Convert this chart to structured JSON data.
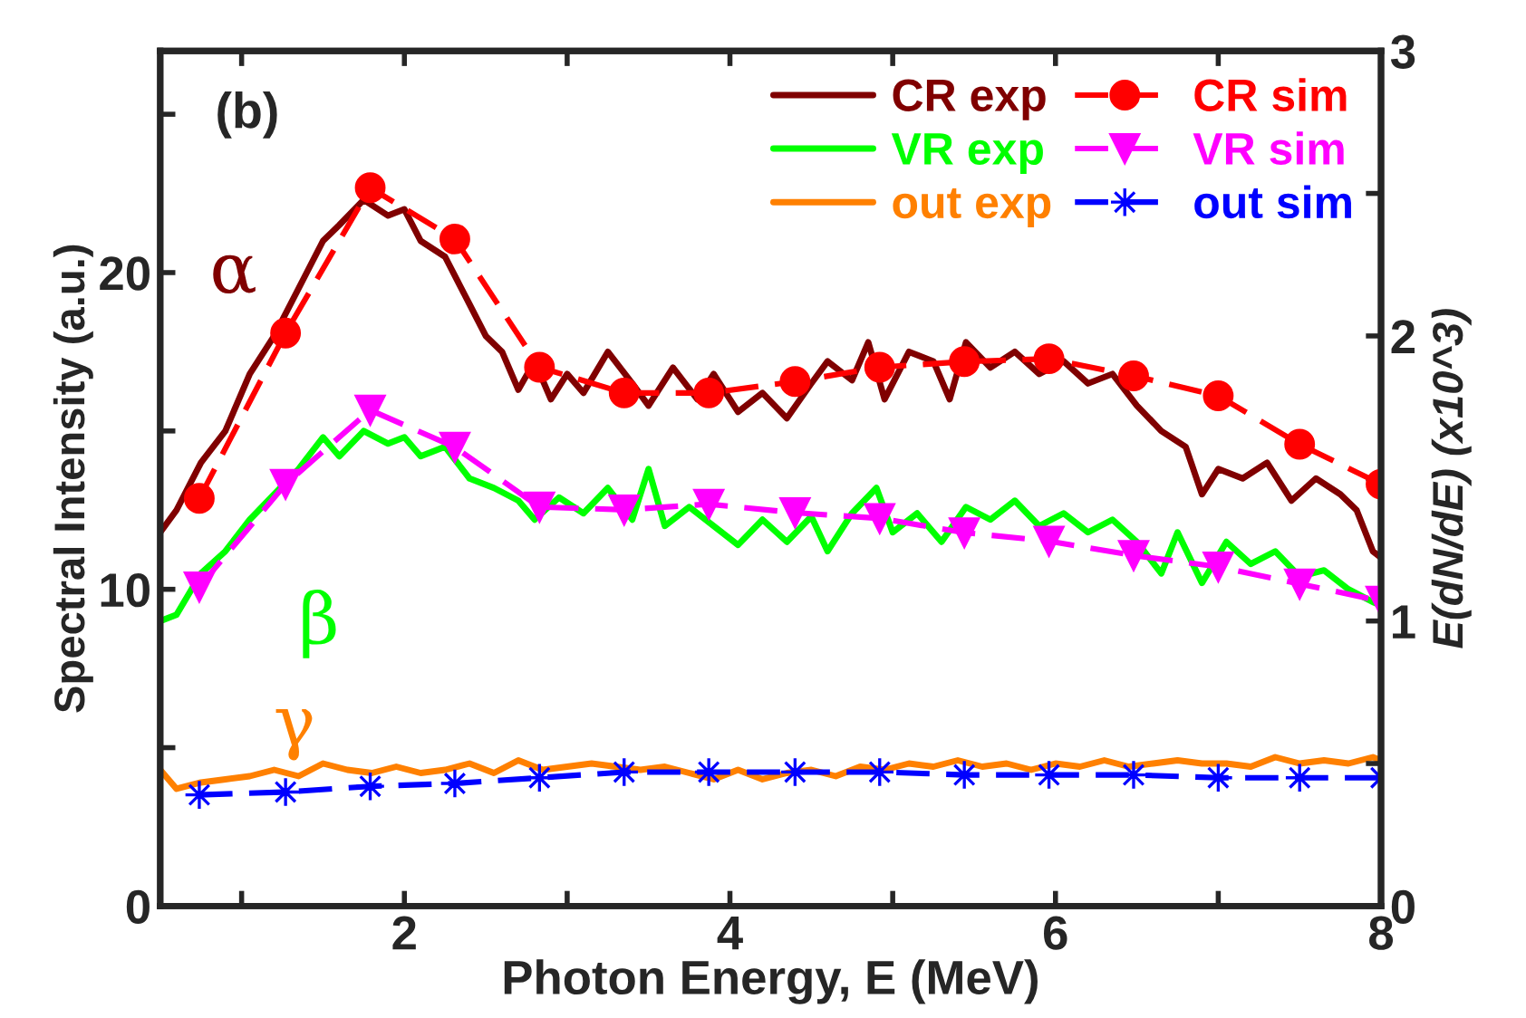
{
  "chart_data": {
    "type": "line",
    "xlabel": "Photon Energy, E (MeV)",
    "ylabel": "Spectral Intensity (a.u.)",
    "y2label": "E(dN/dE) (x10^3)",
    "annotations": [
      "(b)",
      "α",
      "β",
      "γ"
    ],
    "xlim": [
      0.5,
      8
    ],
    "xticks": [
      {
        "value": 1,
        "label": null
      },
      2,
      {
        "value": 3,
        "label": null
      },
      4,
      {
        "value": 5,
        "label": null
      },
      6,
      {
        "value": 7,
        "label": null
      },
      8
    ],
    "ylim": [
      0,
      27
    ],
    "yticks": [
      0,
      {
        "value": 5,
        "label": null
      },
      10,
      {
        "value": 15,
        "label": null
      },
      20,
      {
        "value": 25,
        "label": null
      }
    ],
    "y2lim": [
      0,
      3
    ],
    "y2ticks": [
      0,
      {
        "value": 0.5,
        "label": null
      },
      1,
      {
        "value": 1.5,
        "label": null
      },
      2,
      {
        "value": 2.5,
        "label": null
      },
      3
    ],
    "grid": false,
    "legend": "top right",
    "series": [
      {
        "name": "CR exp",
        "color": "#800000",
        "marker": "none",
        "line_style": "solid",
        "x": [
          0.5,
          0.6,
          0.75,
          0.9,
          1.05,
          1.2,
          1.35,
          1.5,
          1.6,
          1.75,
          1.9,
          2.0,
          2.1,
          2.25,
          2.4,
          2.5,
          2.6,
          2.7,
          2.8,
          2.9,
          3.0,
          3.1,
          3.25,
          3.4,
          3.5,
          3.65,
          3.8,
          3.9,
          4.05,
          4.2,
          4.35,
          4.5,
          4.6,
          4.75,
          4.85,
          4.95,
          5.1,
          5.25,
          5.35,
          5.45,
          5.6,
          5.75,
          5.9,
          6.05,
          6.2,
          6.35,
          6.5,
          6.65,
          6.8,
          6.9,
          7.0,
          7.15,
          7.3,
          7.45,
          7.6,
          7.75,
          7.85,
          7.95,
          8.0
        ],
        "values": [
          11.8,
          12.5,
          14.0,
          15.0,
          16.8,
          18.0,
          19.5,
          21.0,
          21.5,
          22.3,
          21.8,
          22.0,
          21.0,
          20.5,
          19.0,
          18.0,
          17.5,
          16.3,
          17.2,
          16.0,
          16.8,
          16.2,
          17.5,
          16.5,
          15.8,
          17.0,
          16.0,
          16.8,
          15.6,
          16.2,
          15.4,
          16.5,
          17.2,
          16.6,
          17.8,
          16.0,
          17.5,
          17.2,
          16.0,
          17.8,
          17.0,
          17.5,
          16.8,
          17.2,
          16.5,
          16.8,
          15.8,
          15.0,
          14.5,
          13.0,
          13.8,
          13.5,
          14.0,
          12.8,
          13.5,
          13.0,
          12.5,
          11.2,
          11.0
        ]
      },
      {
        "name": "VR exp",
        "color": "#00ff00",
        "marker": "none",
        "line_style": "solid",
        "x": [
          0.5,
          0.6,
          0.75,
          0.9,
          1.05,
          1.2,
          1.35,
          1.5,
          1.6,
          1.75,
          1.9,
          2.0,
          2.1,
          2.25,
          2.4,
          2.55,
          2.7,
          2.8,
          2.95,
          3.1,
          3.25,
          3.4,
          3.5,
          3.6,
          3.75,
          3.9,
          4.05,
          4.2,
          4.35,
          4.5,
          4.6,
          4.75,
          4.9,
          5.0,
          5.15,
          5.3,
          5.45,
          5.6,
          5.75,
          5.9,
          6.05,
          6.2,
          6.35,
          6.5,
          6.65,
          6.75,
          6.9,
          7.05,
          7.2,
          7.35,
          7.5,
          7.65,
          7.8,
          7.95,
          8.0
        ],
        "values": [
          9.0,
          9.2,
          10.5,
          11.2,
          12.2,
          13.0,
          13.8,
          14.8,
          14.2,
          15.0,
          14.6,
          14.8,
          14.2,
          14.5,
          13.5,
          13.2,
          12.8,
          12.2,
          12.9,
          12.4,
          13.2,
          12.2,
          13.8,
          12.0,
          12.6,
          12.0,
          11.4,
          12.2,
          11.5,
          12.3,
          11.2,
          12.4,
          13.2,
          11.8,
          12.4,
          11.5,
          12.6,
          12.2,
          12.8,
          12.0,
          12.4,
          11.8,
          12.2,
          11.5,
          10.5,
          11.8,
          10.2,
          11.5,
          10.8,
          11.2,
          10.4,
          10.6,
          10.0,
          9.6,
          9.5
        ]
      },
      {
        "name": "out exp",
        "color": "#ff8000",
        "marker": "none",
        "line_style": "solid",
        "x": [
          0.5,
          0.6,
          0.75,
          0.9,
          1.05,
          1.2,
          1.35,
          1.5,
          1.65,
          1.8,
          1.95,
          2.1,
          2.25,
          2.4,
          2.55,
          2.7,
          2.85,
          3.0,
          3.15,
          3.3,
          3.45,
          3.6,
          3.75,
          3.9,
          4.05,
          4.2,
          4.35,
          4.5,
          4.65,
          4.8,
          4.95,
          5.1,
          5.25,
          5.4,
          5.55,
          5.7,
          5.85,
          6.0,
          6.15,
          6.3,
          6.45,
          6.6,
          6.75,
          6.9,
          7.05,
          7.2,
          7.35,
          7.5,
          7.65,
          7.8,
          7.95,
          8.0
        ],
        "values": [
          4.3,
          3.7,
          3.9,
          4.0,
          4.1,
          4.3,
          4.1,
          4.5,
          4.3,
          4.2,
          4.4,
          4.2,
          4.3,
          4.5,
          4.2,
          4.6,
          4.3,
          4.4,
          4.5,
          4.4,
          4.3,
          4.4,
          4.2,
          4.0,
          4.3,
          4.0,
          4.2,
          4.3,
          4.1,
          4.4,
          4.3,
          4.5,
          4.4,
          4.6,
          4.4,
          4.5,
          4.3,
          4.5,
          4.4,
          4.6,
          4.4,
          4.5,
          4.6,
          4.5,
          4.5,
          4.4,
          4.7,
          4.5,
          4.6,
          4.5,
          4.7,
          4.6
        ]
      },
      {
        "name": "CR sim",
        "color": "#ff0000",
        "axis": "y2",
        "marker": "circle",
        "line_style": "dashed",
        "x": [
          0.74,
          1.27,
          1.79,
          2.31,
          2.83,
          3.35,
          3.87,
          4.4,
          4.92,
          5.44,
          5.96,
          6.48,
          7.0,
          7.5,
          8.0
        ],
        "values": [
          1.43,
          2.01,
          2.52,
          2.34,
          1.89,
          1.8,
          1.8,
          1.84,
          1.89,
          1.91,
          1.92,
          1.86,
          1.79,
          1.62,
          1.48
        ]
      },
      {
        "name": "VR sim",
        "color": "#ff00ff",
        "axis": "y2",
        "marker": "triangle",
        "line_style": "dashed",
        "x": [
          0.74,
          1.27,
          1.79,
          2.31,
          2.83,
          3.35,
          3.87,
          4.4,
          4.92,
          5.44,
          5.96,
          6.48,
          7.0,
          7.5,
          8.0
        ],
        "values": [
          1.12,
          1.48,
          1.74,
          1.61,
          1.4,
          1.39,
          1.41,
          1.38,
          1.36,
          1.31,
          1.28,
          1.23,
          1.19,
          1.13,
          1.07
        ]
      },
      {
        "name": "out sim",
        "color": "#0000ff",
        "axis": "y2",
        "marker": "star",
        "line_style": "dashed",
        "x": [
          0.74,
          1.27,
          1.79,
          2.31,
          2.83,
          3.35,
          3.87,
          4.4,
          4.92,
          5.44,
          5.96,
          6.48,
          7.0,
          7.5,
          8.0
        ],
        "values": [
          0.39,
          0.4,
          0.42,
          0.43,
          0.45,
          0.47,
          0.47,
          0.47,
          0.47,
          0.46,
          0.46,
          0.46,
          0.45,
          0.45,
          0.45
        ]
      }
    ]
  }
}
